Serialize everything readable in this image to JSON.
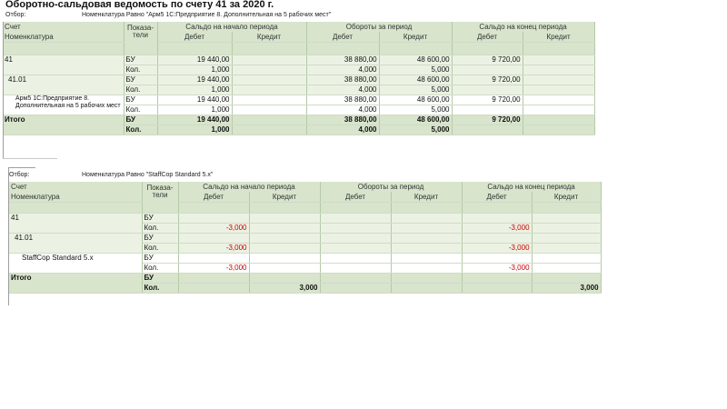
{
  "report": {
    "title": "Оборотно-сальдовая ведомость по счету 41 за 2020 г."
  },
  "table1": {
    "filter_label": "Отбор:",
    "filter_value": "Номенклатура Равно \"Арм5 1С:Предприятие 8. Дополнительная на 5 рабочих мест\"",
    "headers": {
      "account": "Счет",
      "item": "Номенклатура",
      "indicators": "Показа-тели",
      "opening": "Сальдо на начало периода",
      "turnover": "Обороты за период",
      "closing": "Сальдо на конец периода",
      "debit": "Дебет",
      "credit": "Кредит"
    },
    "rows": [
      {
        "name": "41",
        "ind1": "БУ",
        "ind2": "Кол.",
        "od1": "19 440,00",
        "od2": "1,000",
        "oc1": "",
        "oc2": "",
        "td1": "38 880,00",
        "td2": "4,000",
        "tc1": "48 600,00",
        "tc2": "5,000",
        "cd1": "9 720,00",
        "cd2": "",
        "cc1": "",
        "cc2": ""
      },
      {
        "name": "41.01",
        "ind1": "БУ",
        "ind2": "Кол.",
        "od1": "19 440,00",
        "od2": "1,000",
        "oc1": "",
        "oc2": "",
        "td1": "38 880,00",
        "td2": "4,000",
        "tc1": "48 600,00",
        "tc2": "5,000",
        "cd1": "9 720,00",
        "cd2": "",
        "cc1": "",
        "cc2": ""
      },
      {
        "name": "Арм5 1С:Предприятие 8. Дополнительная на 5 рабочих мест",
        "ind1": "БУ",
        "ind2": "Кол.",
        "od1": "19 440,00",
        "od2": "1,000",
        "oc1": "",
        "oc2": "",
        "td1": "38 880,00",
        "td2": "4,000",
        "tc1": "48 600,00",
        "tc2": "5,000",
        "cd1": "9 720,00",
        "cd2": "",
        "cc1": "",
        "cc2": ""
      }
    ],
    "total": {
      "name": "Итого",
      "ind1": "БУ",
      "ind2": "Кол.",
      "od1": "19 440,00",
      "od2": "1,000",
      "oc1": "",
      "oc2": "",
      "td1": "38 880,00",
      "td2": "4,000",
      "tc1": "48 600,00",
      "tc2": "5,000",
      "cd1": "9 720,00",
      "cd2": "",
      "cc1": "",
      "cc2": ""
    }
  },
  "table2": {
    "filter_label": "Отбор:",
    "filter_value": "Номенклатура Равно \"StaffCop Standard 5.x\"",
    "headers": {
      "account": "Счет",
      "item": "Номенклатура",
      "indicators": "Показа-тели",
      "opening": "Сальдо на начало периода",
      "turnover": "Обороты за период",
      "closing": "Сальдо на конец периода",
      "debit": "Дебет",
      "credit": "Кредит"
    },
    "rows": [
      {
        "name": "41",
        "ind1": "БУ",
        "ind2": "Кол.",
        "od1": "",
        "od2": "-3,000",
        "oc1": "",
        "oc2": "",
        "td1": "",
        "td2": "",
        "tc1": "",
        "tc2": "",
        "cd1": "",
        "cd2": "-3,000",
        "cc1": "",
        "cc2": ""
      },
      {
        "name": "41.01",
        "ind1": "БУ",
        "ind2": "Кол.",
        "od1": "",
        "od2": "-3,000",
        "oc1": "",
        "oc2": "",
        "td1": "",
        "td2": "",
        "tc1": "",
        "tc2": "",
        "cd1": "",
        "cd2": "-3,000",
        "cc1": "",
        "cc2": ""
      },
      {
        "name": "StaffCop Standard 5.x",
        "ind1": "БУ",
        "ind2": "Кол.",
        "od1": "",
        "od2": "-3,000",
        "oc1": "",
        "oc2": "",
        "td1": "",
        "td2": "",
        "tc1": "",
        "tc2": "",
        "cd1": "",
        "cd2": "-3,000",
        "cc1": "",
        "cc2": ""
      }
    ],
    "total": {
      "name": "Итого",
      "ind1": "БУ",
      "ind2": "Кол.",
      "od1": "",
      "od2": "",
      "oc1": "",
      "oc2": "3,000",
      "td1": "",
      "td2": "",
      "tc1": "",
      "tc2": "",
      "cd1": "",
      "cd2": "",
      "cc1": "",
      "cc2": "3,000"
    }
  },
  "colors": {
    "header_bg": "#d8e4cc",
    "group_bg": "#ebf2e3",
    "negative": "#cc0000"
  }
}
